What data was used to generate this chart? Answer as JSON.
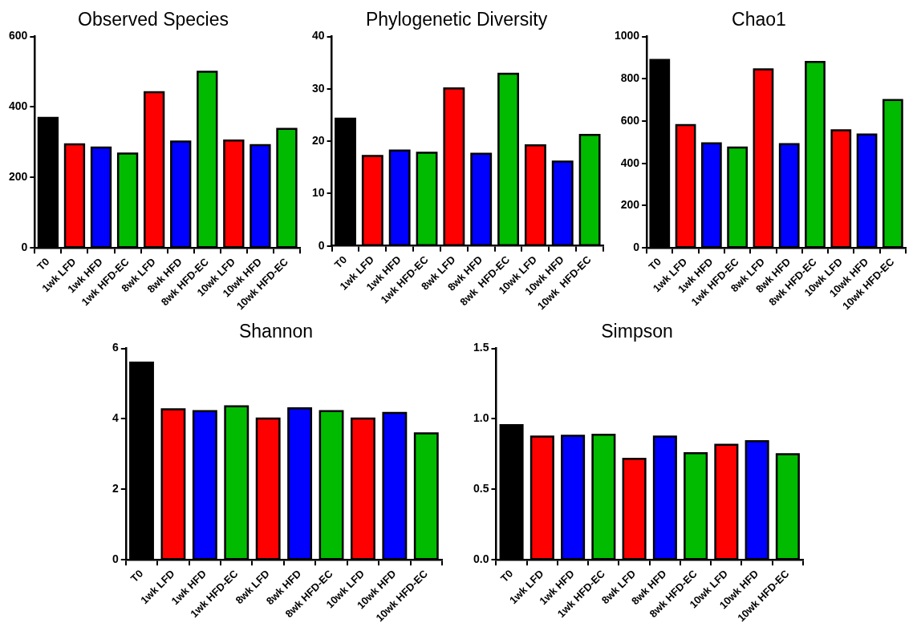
{
  "chart_data": [
    {
      "type": "bar",
      "title": "Observed Species",
      "categories": [
        "T0",
        "1wk LFD",
        "1wk HFD",
        "1wk HFD-EC",
        "8wk LFD",
        "8wk HFD",
        "8wk HFD-EC",
        "10wk LFD",
        "10wk HFD",
        "10wk HFD-EC"
      ],
      "values": [
        369,
        294,
        285,
        268,
        442,
        302,
        500,
        305,
        292,
        338
      ],
      "colors": [
        "#000000",
        "#ff0000",
        "#0000ff",
        "#00bb00",
        "#ff0000",
        "#0000ff",
        "#00bb00",
        "#ff0000",
        "#0000ff",
        "#00bb00"
      ],
      "ylim": [
        0,
        600
      ],
      "yticks": [
        0,
        200,
        400,
        600
      ]
    },
    {
      "type": "bar",
      "title": "Phylogenetic Diversity",
      "categories": [
        "T0",
        "1wk LFD",
        "1wk HFD",
        "1wk HFD-EC",
        "8wk LFD",
        "8wk HFD",
        "8wk  HFD-EC",
        "10wk LFD",
        "10wk HFD",
        "10wk  HFD-EC"
      ],
      "values": [
        24.3,
        17.2,
        18.2,
        17.8,
        30.1,
        17.6,
        32.9,
        19.2,
        16.1,
        21.2
      ],
      "colors": [
        "#000000",
        "#ff0000",
        "#0000ff",
        "#00bb00",
        "#ff0000",
        "#0000ff",
        "#00bb00",
        "#ff0000",
        "#0000ff",
        "#00bb00"
      ],
      "ylim": [
        0,
        40
      ],
      "yticks": [
        0,
        10,
        20,
        30,
        40
      ]
    },
    {
      "type": "bar",
      "title": "Chao1",
      "categories": [
        "T0",
        "1wk LFD",
        "1wk HFD",
        "1wk HFD-EC",
        "8wk LFD",
        "8wk HFD",
        "8wk HFD-EC",
        "10wk LFD",
        "10wk HFD",
        "10wk HFD-EC"
      ],
      "values": [
        889,
        581,
        495,
        475,
        845,
        491,
        880,
        557,
        537,
        700
      ],
      "colors": [
        "#000000",
        "#ff0000",
        "#0000ff",
        "#00bb00",
        "#ff0000",
        "#0000ff",
        "#00bb00",
        "#ff0000",
        "#0000ff",
        "#00bb00"
      ],
      "ylim": [
        0,
        1000
      ],
      "yticks": [
        0,
        200,
        400,
        600,
        800,
        1000
      ]
    },
    {
      "type": "bar",
      "title": "Shannon",
      "categories": [
        "T0",
        "1wk LFD",
        "1wk HFD",
        "1wk HFD-EC",
        "8wk LFD",
        "8wk HFD",
        "8wk HFD-EC",
        "10wk LFD",
        "10wk HFD",
        "10wk HFD-EC"
      ],
      "values": [
        5.6,
        4.27,
        4.22,
        4.36,
        4.01,
        4.3,
        4.22,
        4.01,
        4.17,
        3.59
      ],
      "colors": [
        "#000000",
        "#ff0000",
        "#0000ff",
        "#00bb00",
        "#ff0000",
        "#0000ff",
        "#00bb00",
        "#ff0000",
        "#0000ff",
        "#00bb00"
      ],
      "ylim": [
        0,
        6
      ],
      "yticks": [
        0,
        2,
        4,
        6
      ]
    },
    {
      "type": "bar",
      "title": "Simpson",
      "categories": [
        "T0",
        "1wk LFD",
        "1wk HFD",
        "1wk HFD-EC",
        "8wk LFD",
        "8wk HFD",
        "8wk HFD-EC",
        "10wk LFD",
        "10wk HFD",
        "10wk HFD-EC"
      ],
      "values": [
        0.956,
        0.875,
        0.881,
        0.887,
        0.717,
        0.875,
        0.756,
        0.816,
        0.842,
        0.749
      ],
      "colors": [
        "#000000",
        "#ff0000",
        "#0000ff",
        "#00bb00",
        "#ff0000",
        "#0000ff",
        "#00bb00",
        "#ff0000",
        "#0000ff",
        "#00bb00"
      ],
      "ylim": [
        0,
        1.5
      ],
      "yticks": [
        {
          "value": 0,
          "label": "0.0"
        },
        0.5,
        {
          "value": 1,
          "label": "1.0"
        },
        1.5
      ]
    }
  ]
}
